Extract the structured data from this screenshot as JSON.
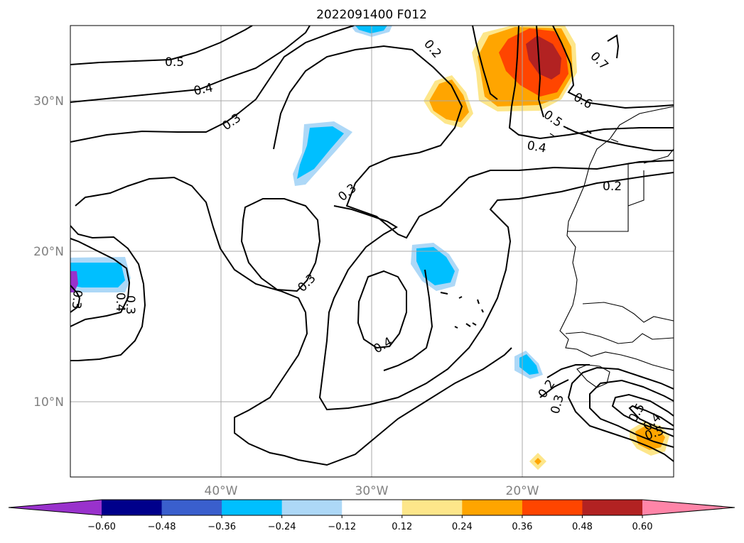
{
  "title": "2022091400 F012",
  "map": {
    "latitude_labels": [
      "30°N",
      "20°N",
      "10°N"
    ],
    "longitude_labels": [
      "40°W",
      "30°W",
      "20°W"
    ],
    "gridlines": true
  },
  "colorbar": {
    "tick_labels": [
      "−0.60",
      "−0.48",
      "−0.36",
      "−0.24",
      "−0.12",
      "0.12",
      "0.24",
      "0.36",
      "0.48",
      "0.60"
    ],
    "levels": [
      -0.6,
      -0.48,
      -0.36,
      -0.24,
      -0.12,
      0.12,
      0.24,
      0.36,
      0.48,
      0.6
    ],
    "colors": [
      "#9932cc",
      "#00008b",
      "#3a5fcd",
      "#00bfff",
      "#add8f7",
      "#ffffff",
      "#fde68a",
      "#ffa500",
      "#ff4500",
      "#b22222",
      "#ff85a8"
    ],
    "extend": "both"
  },
  "contour_labels": [
    "0.5",
    "0.4",
    "0.3",
    "0.2",
    "0.7",
    "0.6",
    "0.5",
    "0.4",
    "0.2",
    "0.3",
    "0.3",
    "0.3",
    "0.4",
    "0.3",
    "0.4",
    "0.5",
    "0.2",
    "0.3",
    "0.5",
    "0.4"
  ]
}
